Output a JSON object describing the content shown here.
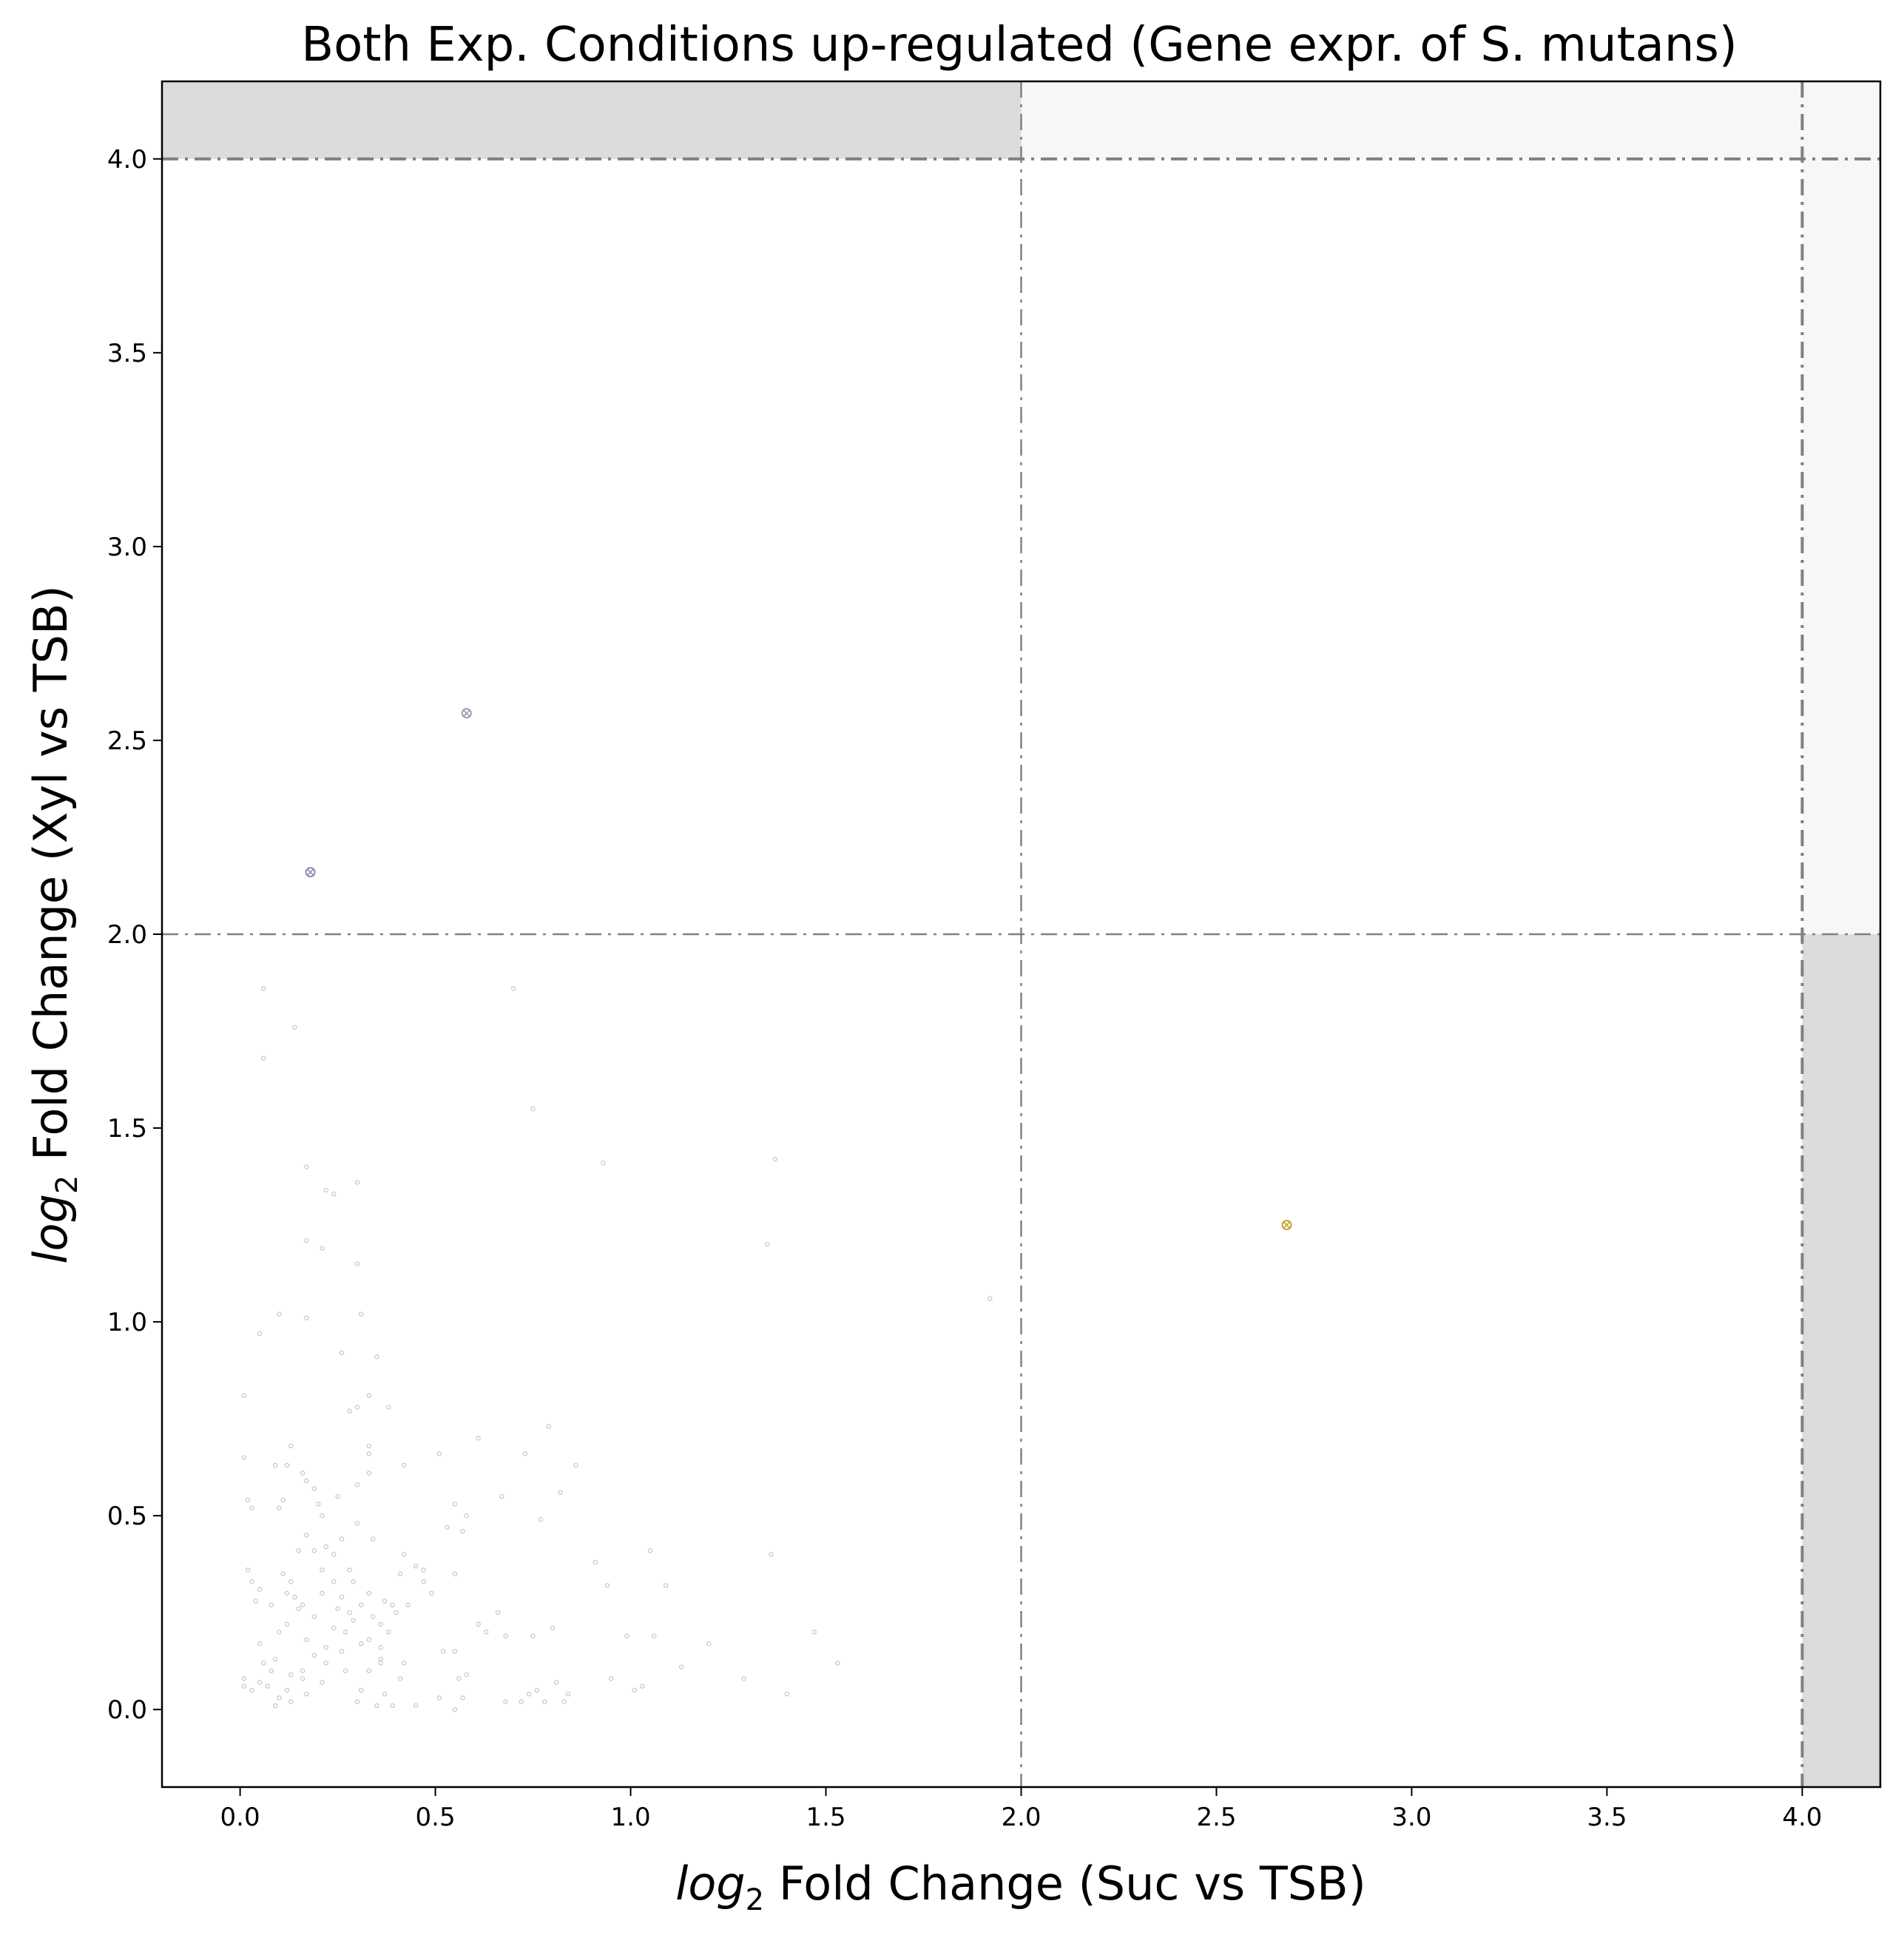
{
  "chart_data": {
    "type": "scatter",
    "title": "Both Exp. Conditions up-regulated (Gene expr. of S. mutans)",
    "xlabel": {
      "italic": "log",
      "sub": "2",
      "rest": " Fold Change (Suc vs TSB)"
    },
    "ylabel": {
      "italic": "log",
      "sub": "2",
      "rest": " Fold Change (Xyl vs TSB)"
    },
    "xlim": [
      -0.2,
      4.2
    ],
    "ylim": [
      -0.2,
      4.2
    ],
    "x_ticks": [
      {
        "value": 0.0,
        "label": "0.0"
      },
      {
        "value": 0.5,
        "label": "0.5"
      },
      {
        "value": 1.0,
        "label": "1.0"
      },
      {
        "value": 1.5,
        "label": "1.5"
      },
      {
        "value": 2.0,
        "label": "2.0"
      },
      {
        "value": 2.5,
        "label": "2.5"
      },
      {
        "value": 3.0,
        "label": "3.0"
      },
      {
        "value": 3.5,
        "label": "3.5"
      },
      {
        "value": 4.0,
        "label": "4.0"
      }
    ],
    "y_ticks": [
      {
        "value": 0.0,
        "label": "0.0"
      },
      {
        "value": 0.5,
        "label": "0.5"
      },
      {
        "value": 1.0,
        "label": "1.0"
      },
      {
        "value": 1.5,
        "label": "1.5"
      },
      {
        "value": 2.0,
        "label": "2.0"
      },
      {
        "value": 2.5,
        "label": "2.5"
      },
      {
        "value": 3.0,
        "label": "3.0"
      },
      {
        "value": 3.5,
        "label": "3.5"
      },
      {
        "value": 4.0,
        "label": "4.0"
      }
    ],
    "grid": false,
    "shaded_regions": [
      {
        "x": [
          -0.2,
          2.0
        ],
        "y": [
          4.0,
          4.2
        ],
        "color": "#dcdcdc"
      },
      {
        "x": [
          2.0,
          4.0
        ],
        "y": [
          4.0,
          4.2
        ],
        "color": "#f7f7f7"
      },
      {
        "x": [
          4.0,
          4.2
        ],
        "y": [
          2.0,
          4.2
        ],
        "color": "#f7f7f7"
      },
      {
        "x": [
          4.0,
          4.2
        ],
        "y": [
          -0.2,
          2.0
        ],
        "color": "#dcdcdc"
      }
    ],
    "threshold_lines": [
      {
        "orientation": "vertical",
        "value": 2.0,
        "width": 2.5,
        "color": "#808080"
      },
      {
        "orientation": "vertical",
        "value": 4.0,
        "width": 4,
        "color": "#808080"
      },
      {
        "orientation": "horizontal",
        "value": 2.0,
        "width": 2.5,
        "color": "#808080"
      },
      {
        "orientation": "horizontal",
        "value": 4.0,
        "width": 4,
        "color": "#808080"
      }
    ],
    "highlight_points": [
      {
        "x": 0.58,
        "y": 2.57,
        "color": "#9a9ab0"
      },
      {
        "x": 0.18,
        "y": 2.16,
        "color": "#8a8ab8"
      },
      {
        "x": 2.68,
        "y": 1.25,
        "color": "#c8a030"
      }
    ],
    "background_points_color": "#c4c4cc",
    "background_points": [
      [
        0.06,
        1.86
      ],
      [
        0.7,
        1.86
      ],
      [
        0.14,
        1.76
      ],
      [
        0.06,
        1.68
      ],
      [
        0.75,
        1.55
      ],
      [
        0.17,
        1.4
      ],
      [
        1.37,
        1.42
      ],
      [
        0.93,
        1.41
      ],
      [
        0.3,
        1.36
      ],
      [
        0.22,
        1.34
      ],
      [
        0.24,
        1.33
      ],
      [
        0.17,
        1.21
      ],
      [
        0.21,
        1.19
      ],
      [
        1.35,
        1.2
      ],
      [
        0.3,
        1.15
      ],
      [
        1.92,
        1.06
      ],
      [
        0.1,
        1.02
      ],
      [
        0.17,
        1.01
      ],
      [
        0.31,
        1.02
      ],
      [
        0.05,
        0.97
      ],
      [
        0.26,
        0.92
      ],
      [
        0.35,
        0.91
      ],
      [
        0.01,
        0.81
      ],
      [
        0.33,
        0.81
      ],
      [
        0.38,
        0.78
      ],
      [
        0.28,
        0.77
      ],
      [
        0.3,
        0.78
      ],
      [
        0.61,
        0.7
      ],
      [
        0.33,
        0.68
      ],
      [
        0.13,
        0.68
      ],
      [
        0.33,
        0.66
      ],
      [
        0.73,
        0.66
      ],
      [
        0.79,
        0.73
      ],
      [
        0.01,
        0.65
      ],
      [
        0.42,
        0.63
      ],
      [
        0.86,
        0.63
      ],
      [
        0.51,
        0.66
      ],
      [
        0.09,
        0.63
      ],
      [
        0.12,
        0.63
      ],
      [
        0.16,
        0.61
      ],
      [
        0.33,
        0.61
      ],
      [
        0.17,
        0.59
      ],
      [
        0.19,
        0.57
      ],
      [
        0.3,
        0.58
      ],
      [
        0.67,
        0.55
      ],
      [
        0.82,
        0.56
      ],
      [
        0.11,
        0.54
      ],
      [
        0.02,
        0.54
      ],
      [
        0.2,
        0.53
      ],
      [
        0.25,
        0.55
      ],
      [
        0.55,
        0.53
      ],
      [
        0.1,
        0.52
      ],
      [
        0.03,
        0.52
      ],
      [
        0.21,
        0.5
      ],
      [
        0.58,
        0.5
      ],
      [
        0.77,
        0.49
      ],
      [
        0.3,
        0.48
      ],
      [
        0.53,
        0.47
      ],
      [
        0.57,
        0.46
      ],
      [
        0.17,
        0.45
      ],
      [
        0.34,
        0.44
      ],
      [
        0.26,
        0.44
      ],
      [
        0.19,
        0.41
      ],
      [
        0.22,
        0.42
      ],
      [
        0.15,
        0.41
      ],
      [
        0.24,
        0.4
      ],
      [
        0.42,
        0.4
      ],
      [
        1.05,
        0.41
      ],
      [
        1.36,
        0.4
      ],
      [
        0.91,
        0.38
      ],
      [
        0.02,
        0.36
      ],
      [
        0.45,
        0.37
      ],
      [
        0.47,
        0.36
      ],
      [
        0.21,
        0.36
      ],
      [
        0.28,
        0.36
      ],
      [
        0.41,
        0.35
      ],
      [
        0.55,
        0.35
      ],
      [
        0.11,
        0.35
      ],
      [
        0.13,
        0.33
      ],
      [
        0.24,
        0.33
      ],
      [
        0.29,
        0.33
      ],
      [
        0.47,
        0.33
      ],
      [
        0.03,
        0.33
      ],
      [
        0.94,
        0.32
      ],
      [
        1.09,
        0.32
      ],
      [
        0.05,
        0.31
      ],
      [
        0.12,
        0.3
      ],
      [
        0.21,
        0.3
      ],
      [
        0.33,
        0.3
      ],
      [
        0.49,
        0.3
      ],
      [
        0.26,
        0.29
      ],
      [
        0.14,
        0.29
      ],
      [
        0.04,
        0.28
      ],
      [
        0.37,
        0.28
      ],
      [
        0.08,
        0.27
      ],
      [
        0.16,
        0.27
      ],
      [
        0.31,
        0.27
      ],
      [
        0.39,
        0.27
      ],
      [
        0.43,
        0.27
      ],
      [
        0.15,
        0.26
      ],
      [
        0.25,
        0.26
      ],
      [
        0.28,
        0.25
      ],
      [
        0.4,
        0.25
      ],
      [
        0.66,
        0.25
      ],
      [
        0.19,
        0.24
      ],
      [
        0.34,
        0.24
      ],
      [
        0.29,
        0.23
      ],
      [
        0.12,
        0.22
      ],
      [
        0.36,
        0.22
      ],
      [
        0.61,
        0.22
      ],
      [
        0.8,
        0.21
      ],
      [
        0.24,
        0.21
      ],
      [
        0.27,
        0.2
      ],
      [
        0.38,
        0.2
      ],
      [
        0.1,
        0.2
      ],
      [
        0.63,
        0.2
      ],
      [
        1.47,
        0.2
      ],
      [
        0.68,
        0.19
      ],
      [
        0.75,
        0.19
      ],
      [
        0.33,
        0.18
      ],
      [
        1.06,
        0.19
      ],
      [
        0.99,
        0.19
      ],
      [
        0.17,
        0.18
      ],
      [
        0.05,
        0.17
      ],
      [
        0.31,
        0.17
      ],
      [
        1.2,
        0.17
      ],
      [
        0.22,
        0.16
      ],
      [
        0.36,
        0.16
      ],
      [
        0.55,
        0.15
      ],
      [
        0.52,
        0.15
      ],
      [
        0.26,
        0.15
      ],
      [
        0.19,
        0.14
      ],
      [
        0.09,
        0.13
      ],
      [
        0.36,
        0.13
      ],
      [
        0.06,
        0.12
      ],
      [
        0.22,
        0.12
      ],
      [
        0.36,
        0.12
      ],
      [
        0.42,
        0.12
      ],
      [
        1.53,
        0.12
      ],
      [
        0.16,
        0.1
      ],
      [
        0.08,
        0.1
      ],
      [
        0.27,
        0.1
      ],
      [
        0.33,
        0.1
      ],
      [
        0.13,
        0.09
      ],
      [
        1.13,
        0.11
      ],
      [
        0.58,
        0.09
      ],
      [
        0.41,
        0.08
      ],
      [
        0.56,
        0.08
      ],
      [
        0.81,
        0.07
      ],
      [
        0.95,
        0.08
      ],
      [
        1.29,
        0.08
      ],
      [
        0.01,
        0.08
      ],
      [
        0.16,
        0.08
      ],
      [
        0.21,
        0.07
      ],
      [
        0.05,
        0.07
      ],
      [
        0.07,
        0.06
      ],
      [
        0.01,
        0.06
      ],
      [
        0.12,
        0.05
      ],
      [
        0.03,
        0.05
      ],
      [
        1.03,
        0.06
      ],
      [
        1.01,
        0.05
      ],
      [
        0.76,
        0.05
      ],
      [
        0.31,
        0.05
      ],
      [
        0.37,
        0.04
      ],
      [
        0.84,
        0.04
      ],
      [
        0.17,
        0.04
      ],
      [
        1.4,
        0.04
      ],
      [
        0.74,
        0.04
      ],
      [
        0.1,
        0.03
      ],
      [
        0.51,
        0.03
      ],
      [
        0.57,
        0.03
      ],
      [
        0.83,
        0.02
      ],
      [
        0.68,
        0.02
      ],
      [
        0.72,
        0.02
      ],
      [
        0.78,
        0.02
      ],
      [
        0.3,
        0.02
      ],
      [
        0.45,
        0.01
      ],
      [
        0.09,
        0.01
      ],
      [
        0.35,
        0.01
      ],
      [
        0.55,
        0.0
      ],
      [
        0.39,
        0.01
      ],
      [
        0.13,
        0.02
      ]
    ]
  }
}
